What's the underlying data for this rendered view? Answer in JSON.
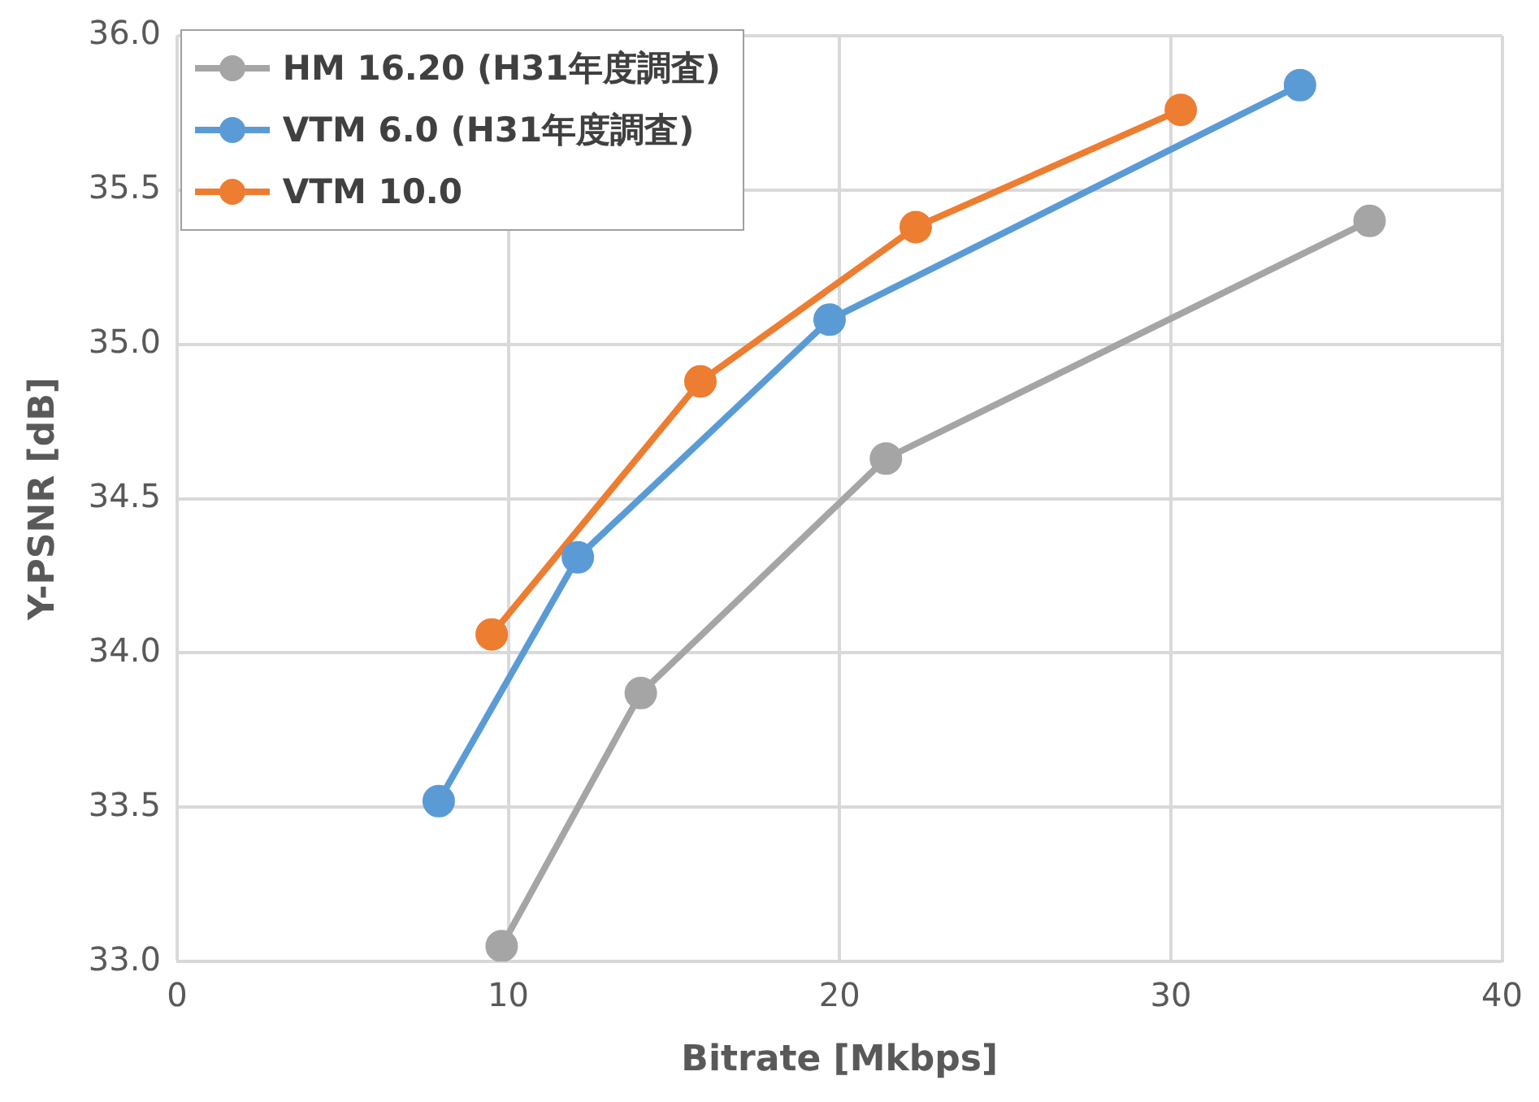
{
  "chart_data": {
    "type": "line",
    "xlabel": "Bitrate [Mkbps]",
    "ylabel": "Y-PSNR [dB]",
    "xlim": [
      0,
      40
    ],
    "xticks": [
      0,
      10,
      20,
      30,
      40
    ],
    "ylim": [
      33,
      36
    ],
    "yticks": [
      {
        "value": 33,
        "label": "33.0"
      },
      {
        "value": 33.5,
        "label": "33.5"
      },
      {
        "value": 34,
        "label": "34.0"
      },
      {
        "value": 34.5,
        "label": "34.5"
      },
      {
        "value": 35,
        "label": "35.0"
      },
      {
        "value": 35.5,
        "label": "35.5"
      },
      {
        "value": 36,
        "label": "36.0"
      }
    ],
    "grid": true,
    "legend": "top left",
    "marker": "circle",
    "line_style": "solid",
    "series": [
      {
        "name": "HM 16.20 (H31年度調査)",
        "color": "#a5a5a5",
        "x": [
          9.8,
          14.0,
          21.4,
          36.0
        ],
        "values": [
          33.05,
          33.87,
          34.63,
          35.4
        ]
      },
      {
        "name": "VTM 6.0 (H31年度調査)",
        "color": "#5b9bd5",
        "x": [
          7.9,
          12.1,
          19.7,
          33.9
        ],
        "values": [
          33.52,
          34.31,
          35.08,
          35.84
        ]
      },
      {
        "name": "VTM 10.0",
        "color": "#ed7d31",
        "x": [
          9.5,
          15.8,
          22.3,
          30.3
        ],
        "values": [
          34.06,
          34.88,
          35.38,
          35.76
        ]
      }
    ]
  }
}
